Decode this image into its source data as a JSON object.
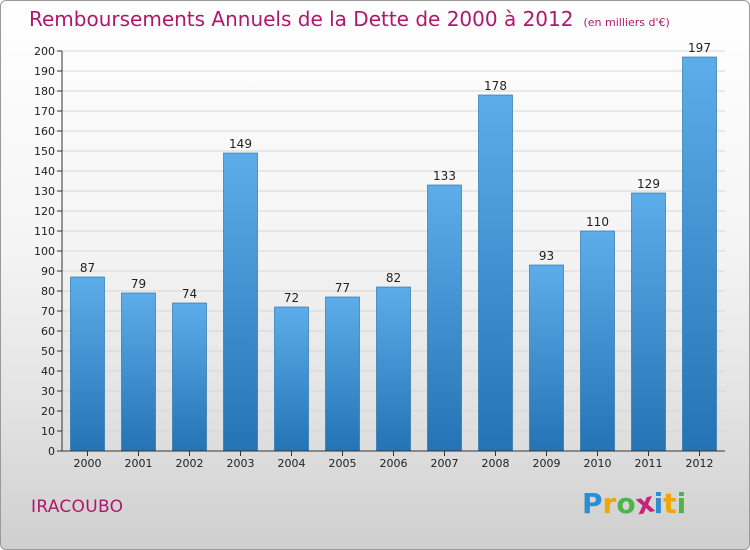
{
  "title": "Remboursements Annuels de la Dette de 2000 à 2012",
  "unit_note": "(en milliers d'€)",
  "commune": "IRACOUBO",
  "brand": {
    "letters": [
      "P",
      "r",
      "o",
      "x",
      "i",
      "t",
      "i"
    ],
    "colors": [
      "#2a8fd2",
      "#f0a500",
      "#4bb548",
      "#c8237a",
      "#2a8fd2",
      "#f0a500",
      "#4bb548"
    ]
  },
  "colors": {
    "accent": "#b0176a",
    "bar_top": "#5dadea",
    "bar_bottom": "#2474b5",
    "axis": "#333333"
  },
  "chart_data": {
    "type": "bar",
    "title": "Remboursements Annuels de la Dette de 2000 à 2012",
    "categories": [
      "2000",
      "2001",
      "2002",
      "2003",
      "2004",
      "2005",
      "2006",
      "2007",
      "2008",
      "2009",
      "2010",
      "2011",
      "2012"
    ],
    "values": [
      87,
      79,
      74,
      149,
      72,
      77,
      82,
      133,
      178,
      93,
      110,
      129,
      197
    ],
    "ylim": [
      0,
      200
    ],
    "yticks": [
      0,
      10,
      20,
      30,
      40,
      50,
      60,
      70,
      80,
      90,
      100,
      110,
      120,
      130,
      140,
      150,
      160,
      170,
      180,
      190,
      200
    ],
    "grid": true,
    "legend": "none"
  }
}
